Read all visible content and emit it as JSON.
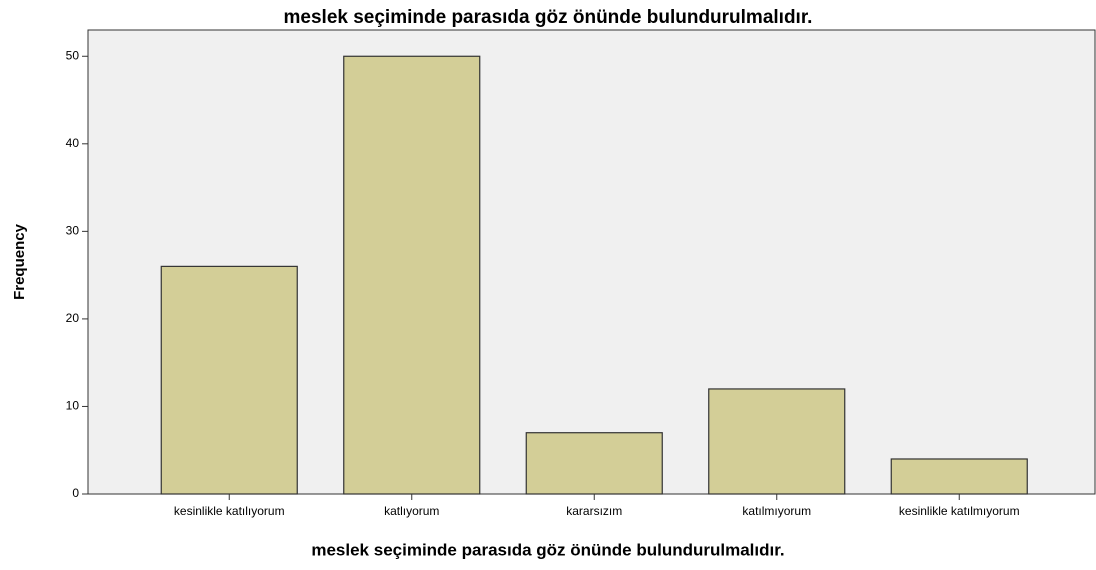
{
  "chart_data": {
    "type": "bar",
    "title": "meslek seçiminde parasıda göz önünde bulundurulmalıdır.",
    "xlabel": "meslek seçiminde parasıda göz önünde bulundurulmalıdır.",
    "ylabel": "Frequency",
    "categories": [
      "kesinlikle katılıyorum",
      "katlıyorum",
      "kararsızım",
      "katılmıyorum",
      "kesinlikle katılmıyorum"
    ],
    "values": [
      26,
      50,
      7,
      12,
      4
    ],
    "color": "#d3ce97",
    "ylim": [
      0,
      53
    ],
    "yticks": [
      0,
      10,
      20,
      30,
      40,
      50
    ],
    "grid": false
  }
}
